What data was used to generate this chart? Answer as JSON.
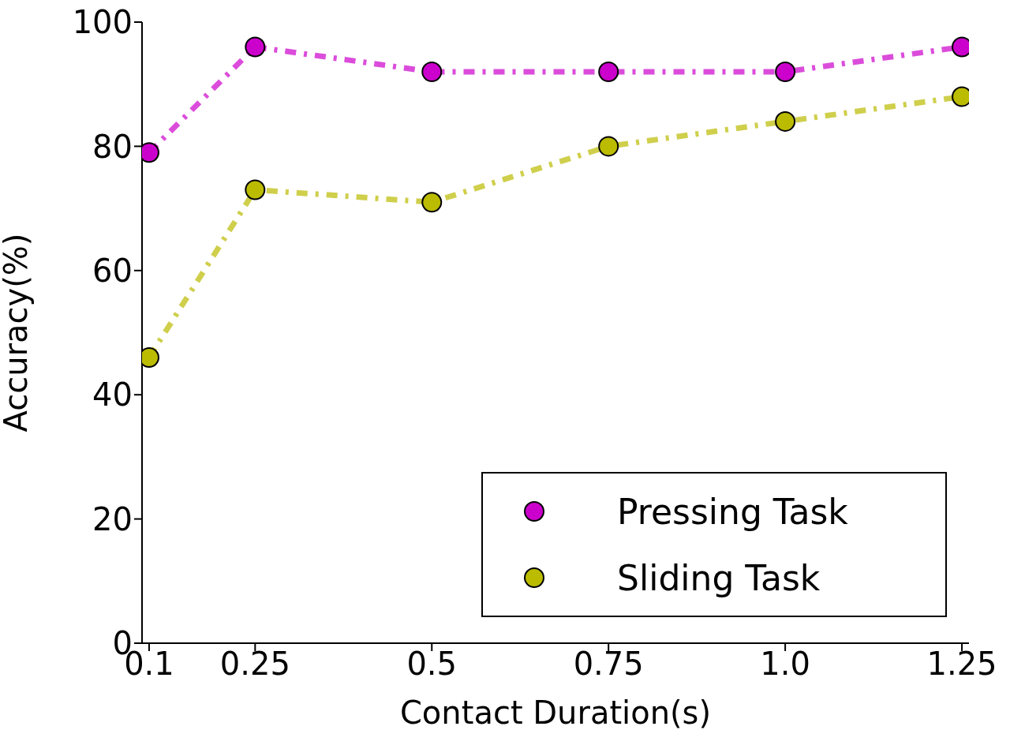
{
  "chart_data": {
    "type": "line",
    "xlabel": "Contact Duration(s)",
    "ylabel": "Accuracy(%)",
    "x": [
      0.1,
      0.25,
      0.5,
      0.75,
      1.0,
      1.25
    ],
    "series": [
      {
        "name": "Pressing Task",
        "color": "#cc00cc",
        "values": [
          79,
          96,
          92,
          92,
          92,
          96
        ]
      },
      {
        "name": "Sliding Task",
        "color": "#bbbb00",
        "values": [
          46,
          73,
          71,
          80,
          84,
          88
        ]
      }
    ],
    "xlim": [
      0.09,
      1.26
    ],
    "xticks": [
      0.1,
      0.25,
      0.5,
      0.75,
      {
        "value": 1.0,
        "label": "1.0"
      },
      1.25
    ],
    "ylim": [
      0,
      100
    ],
    "yticks": [
      0,
      20,
      40,
      60,
      80,
      100
    ],
    "grid": false,
    "legend": "bottom right",
    "marker": "circle",
    "line_style": "dashed"
  }
}
